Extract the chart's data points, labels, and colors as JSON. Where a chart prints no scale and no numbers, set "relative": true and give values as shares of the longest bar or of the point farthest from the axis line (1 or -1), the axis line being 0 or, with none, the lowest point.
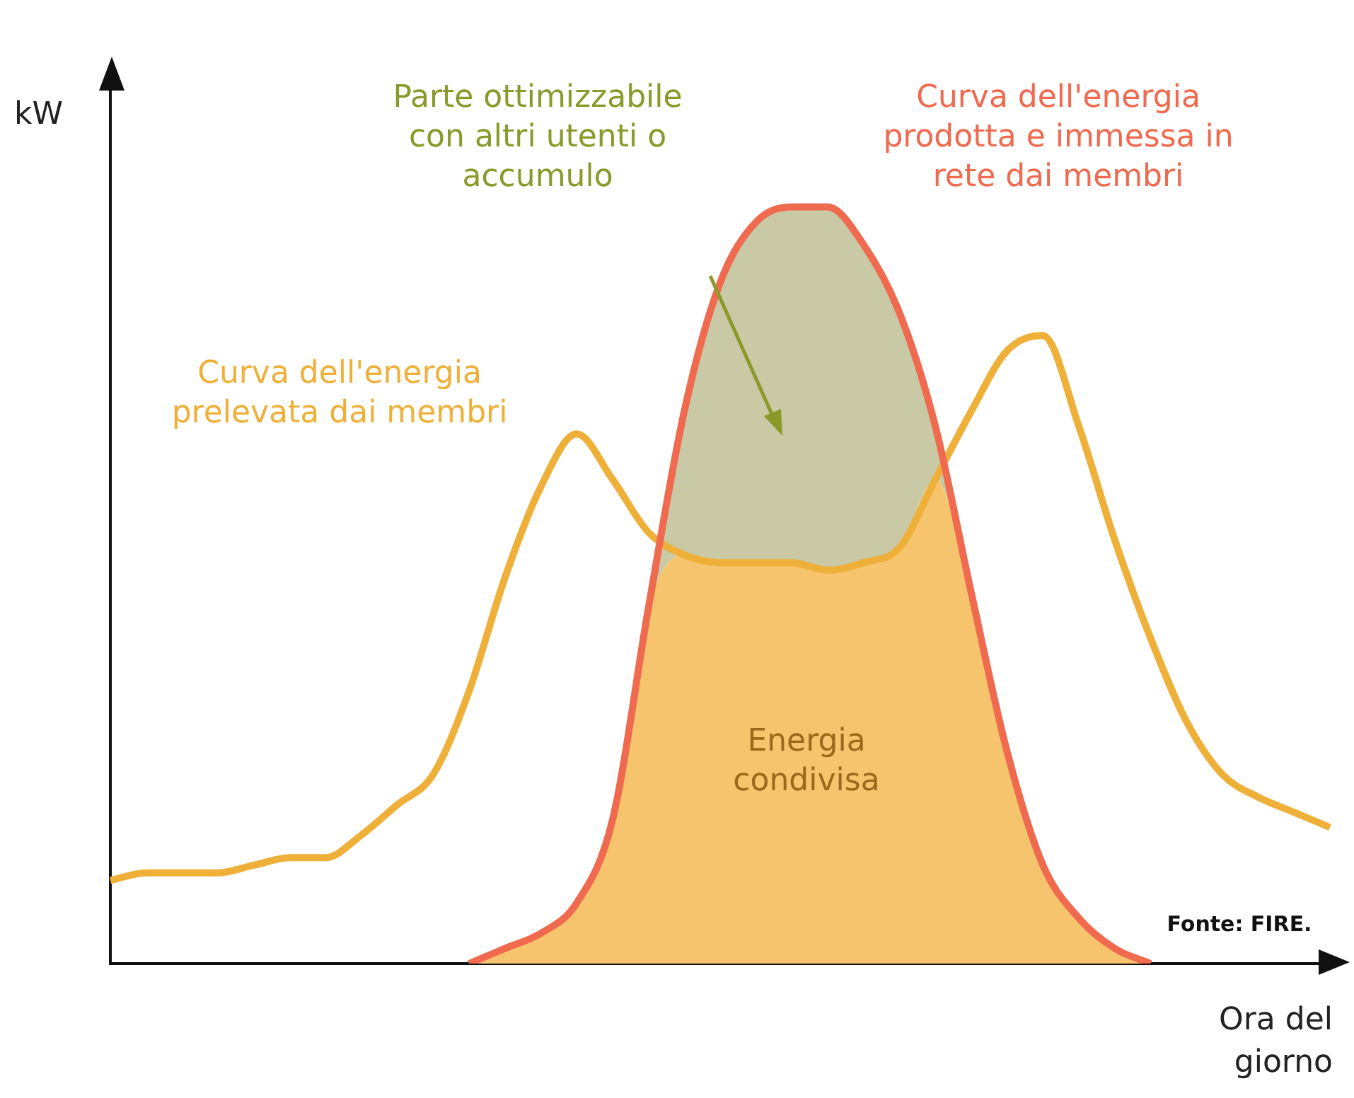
{
  "chart_data": {
    "type": "line",
    "relative": true,
    "ylabel": "kW",
    "xlabel": "Ora del giorno",
    "categories": [
      null,
      null,
      null,
      null,
      null,
      null,
      null,
      null,
      null,
      null,
      null,
      null,
      null,
      null,
      null,
      null,
      null,
      null,
      null,
      null,
      null,
      null,
      null,
      null,
      null,
      null,
      null,
      null,
      null,
      null,
      null,
      null,
      null,
      null,
      null
    ],
    "series": [
      {
        "type": "area",
        "name": "Energia condivisa",
        "color": "#f7c46e",
        "values": [
          null,
          null,
          null,
          null,
          null,
          null,
          null,
          null,
          null,
          null,
          0.0,
          0.02,
          0.04,
          0.08,
          0.19,
          0.47,
          0.54,
          0.53,
          0.53,
          0.53,
          0.52,
          0.53,
          0.55,
          0.64,
          0.49,
          0.28,
          0.13,
          0.06,
          0.02,
          0.0,
          null,
          null,
          null,
          null,
          null
        ]
      },
      {
        "name": "Curva dell'energia prelevata dai membri",
        "color": "#efb03a",
        "values": [
          0.11,
          0.12,
          0.12,
          0.12,
          0.13,
          0.14,
          0.14,
          0.17,
          0.21,
          0.25,
          0.36,
          0.51,
          0.63,
          0.7,
          0.64,
          0.57,
          0.54,
          0.53,
          0.53,
          0.53,
          0.52,
          0.53,
          0.55,
          0.64,
          0.73,
          0.81,
          0.83,
          0.71,
          0.56,
          0.43,
          0.32,
          0.25,
          0.22,
          0.2,
          0.18
        ]
      },
      {
        "name": "Curva dell'energia prodotta e immessa in rete dai membri",
        "color": "#ef6a4f",
        "values": [
          null,
          null,
          null,
          null,
          null,
          null,
          null,
          null,
          null,
          null,
          0.0,
          0.02,
          0.04,
          0.08,
          0.19,
          0.47,
          0.73,
          0.9,
          0.98,
          1.0,
          1.0,
          0.95,
          0.86,
          0.71,
          0.49,
          0.28,
          0.13,
          0.06,
          0.02,
          0.0,
          null,
          null,
          null,
          null,
          null
        ],
        "lower": [
          null,
          null,
          null,
          null,
          null,
          null,
          null,
          null,
          null,
          null,
          0.0,
          0.02,
          0.04,
          0.08,
          0.19,
          0.47,
          0.54,
          0.53,
          0.53,
          0.53,
          0.52,
          0.53,
          0.55,
          0.64,
          0.49,
          0.28,
          0.13,
          0.06,
          0.02,
          0.0,
          null,
          null,
          null,
          null,
          null
        ],
        "upper": [
          null,
          null,
          null,
          null,
          null,
          null,
          null,
          null,
          null,
          null,
          0.0,
          0.02,
          0.04,
          0.08,
          0.19,
          0.47,
          0.73,
          0.9,
          0.98,
          1.0,
          1.0,
          0.95,
          0.86,
          0.71,
          0.49,
          0.28,
          0.13,
          0.06,
          0.02,
          0.0,
          null,
          null,
          null,
          null,
          null
        ]
      }
    ],
    "annotations": [
      "Parte ottimizzabile con altri utenti o accumulo",
      "Fonte: FIRE."
    ],
    "legend": false,
    "grid": false,
    "marker": "none",
    "line_style": "solid"
  }
}
